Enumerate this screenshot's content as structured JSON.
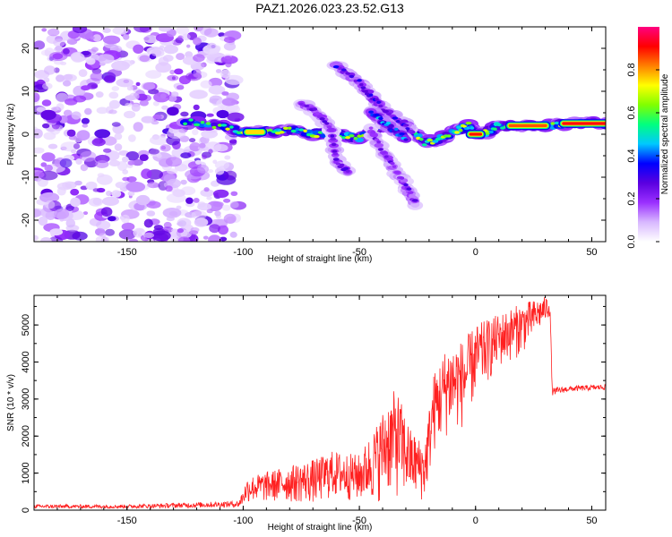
{
  "figure_title": "PAZ1.2026.023.23.52.G13",
  "chart_data": [
    {
      "type": "heatmap",
      "title": "PAZ1.2026.023.23.52.G13",
      "xlabel": "Height of straight line (km)",
      "ylabel": "Frequency (Hz)",
      "xlim": [
        -190,
        56
      ],
      "ylim": [
        -25,
        25
      ],
      "xticks": [
        -150,
        -100,
        -50,
        0,
        50
      ],
      "yticks": [
        -20,
        -10,
        0,
        10,
        20
      ],
      "colorbar": {
        "label": "Normalized spectral amplitude",
        "range": [
          0,
          1
        ],
        "ticks": [
          "0.0",
          "0.2",
          "0.4",
          "0.6",
          "0.8"
        ],
        "tick_values": [
          0,
          0.2,
          0.4,
          0.6,
          0.8
        ],
        "colormap": [
          "#ffffff",
          "#d8b8ff",
          "#9b30ff",
          "#5a00e0",
          "#0000ff",
          "#00c8ff",
          "#00ff80",
          "#80ff00",
          "#ffff00",
          "#ff8000",
          "#ff0000",
          "#ff0080"
        ]
      },
      "noise_region": {
        "x": [
          -190,
          -102
        ],
        "y": [
          -25,
          25
        ],
        "amplitude": [
          0.05,
          0.3
        ]
      },
      "tracks": [
        {
          "name": "main-doppler-track",
          "points": [
            [
              -125,
              3
            ],
            [
              -110,
              2
            ],
            [
              -100,
              0.5
            ],
            [
              -90,
              0.5
            ],
            [
              -80,
              1
            ],
            [
              -70,
              0
            ],
            [
              -60,
              0
            ],
            [
              -50,
              -1
            ],
            [
              -40,
              2
            ],
            [
              -30,
              2
            ],
            [
              -22,
              -2
            ],
            [
              -15,
              -1
            ],
            [
              -8,
              1
            ],
            [
              -3,
              2
            ],
            [
              0,
              0
            ],
            [
              5,
              0.5
            ],
            [
              10,
              2
            ],
            [
              20,
              2
            ],
            [
              30,
              2
            ],
            [
              40,
              2.5
            ],
            [
              56,
              2.5
            ]
          ],
          "amplitude": 0.6
        },
        {
          "name": "upper-branch",
          "points": [
            [
              -60,
              16
            ],
            [
              -50,
              12
            ],
            [
              -45,
              9
            ],
            [
              -40,
              6
            ],
            [
              -32,
              3
            ],
            [
              -28,
              1
            ]
          ],
          "amplitude": 0.3
        },
        {
          "name": "left-branch",
          "points": [
            [
              -75,
              7
            ],
            [
              -68,
              5
            ],
            [
              -62,
              1
            ],
            [
              -60,
              -6
            ],
            [
              -55,
              -9
            ]
          ],
          "amplitude": 0.25
        },
        {
          "name": "lower-branch",
          "points": [
            [
              -45,
              1
            ],
            [
              -40,
              -4
            ],
            [
              -35,
              -8
            ],
            [
              -30,
              -12
            ],
            [
              -26,
              -16
            ]
          ],
          "amplitude": 0.25
        },
        {
          "name": "mid-branch",
          "points": [
            [
              -45,
              5
            ],
            [
              -40,
              3
            ],
            [
              -35,
              1
            ],
            [
              -30,
              -1
            ]
          ],
          "amplitude": 0.4
        }
      ],
      "hot_segments": [
        {
          "x": [
            38,
            56
          ],
          "y": 2.5,
          "amplitude": 0.92
        },
        {
          "x": [
            15,
            30
          ],
          "y": 2,
          "amplitude": 0.85
        },
        {
          "x": [
            -2,
            2
          ],
          "y": 0,
          "amplitude": 0.9
        },
        {
          "x": [
            -98,
            -92
          ],
          "y": 0.5,
          "amplitude": 0.75
        }
      ]
    },
    {
      "type": "line",
      "xlabel": "Height of straight line (km)",
      "ylabel": "SNR (10 * v/v)",
      "xlim": [
        -190,
        56
      ],
      "ylim": [
        0,
        5800
      ],
      "xticks": [
        -150,
        -100,
        -50,
        0,
        50
      ],
      "yticks": [
        0,
        1000,
        2000,
        3000,
        4000,
        5000
      ],
      "series": [
        {
          "name": "SNR",
          "color": "#ff2020",
          "envelope": [
            {
              "x": -190,
              "lo": 50,
              "hi": 150
            },
            {
              "x": -150,
              "lo": 50,
              "hi": 150
            },
            {
              "x": -102,
              "lo": 80,
              "hi": 250
            },
            {
              "x": -98,
              "lo": 200,
              "hi": 900
            },
            {
              "x": -80,
              "lo": 200,
              "hi": 1200
            },
            {
              "x": -68,
              "lo": 150,
              "hi": 1400
            },
            {
              "x": -62,
              "lo": 300,
              "hi": 1600
            },
            {
              "x": -50,
              "lo": 200,
              "hi": 1500
            },
            {
              "x": -42,
              "lo": 200,
              "hi": 2400
            },
            {
              "x": -38,
              "lo": 400,
              "hi": 3000
            },
            {
              "x": -34,
              "lo": 300,
              "hi": 3300
            },
            {
              "x": -28,
              "lo": 300,
              "hi": 2200
            },
            {
              "x": -22,
              "lo": 200,
              "hi": 1800
            },
            {
              "x": -18,
              "lo": 1500,
              "hi": 3700
            },
            {
              "x": -12,
              "lo": 2000,
              "hi": 4500
            },
            {
              "x": -5,
              "lo": 2200,
              "hi": 4600
            },
            {
              "x": 0,
              "lo": 3000,
              "hi": 5000
            },
            {
              "x": 10,
              "lo": 3800,
              "hi": 5300
            },
            {
              "x": 20,
              "lo": 4200,
              "hi": 5600
            },
            {
              "x": 27,
              "lo": 4800,
              "hi": 5700
            },
            {
              "x": 32,
              "lo": 5200,
              "hi": 5800
            },
            {
              "x": 33,
              "lo": 3100,
              "hi": 3300
            },
            {
              "x": 40,
              "lo": 3200,
              "hi": 3350
            },
            {
              "x": 56,
              "lo": 3250,
              "hi": 3400
            }
          ]
        }
      ]
    }
  ]
}
